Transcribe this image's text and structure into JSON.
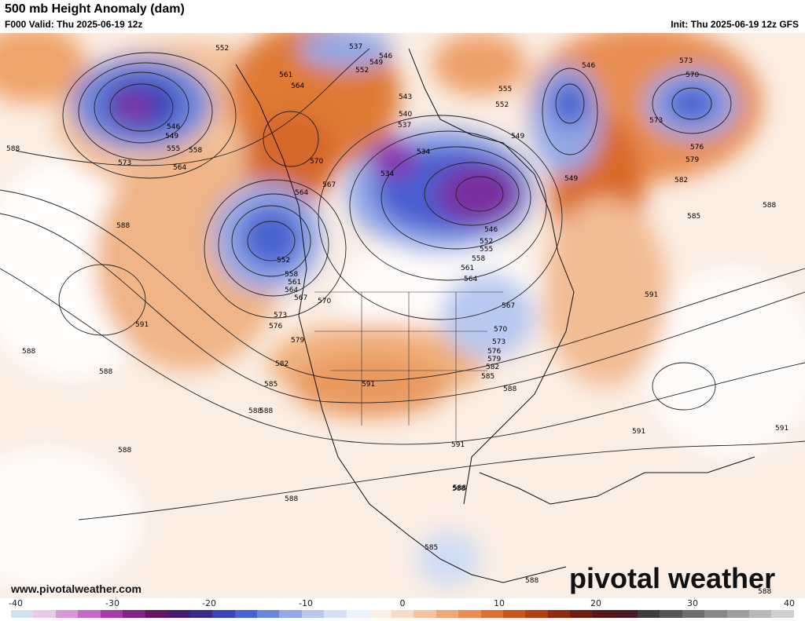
{
  "header": {
    "title": "500 mb Height Anomaly (dam)",
    "valid": "F000 Valid: Thu 2025-06-19 12z",
    "init": "Init: Thu 2025-06-19 12z GFS"
  },
  "footer": {
    "website": "www.pivotalweather.com",
    "logo": "pivotal weather"
  },
  "colorbar": {
    "ticks": [
      "-40",
      "-30",
      "-20",
      "-10",
      "0",
      "10",
      "20",
      "30",
      "40"
    ],
    "colors": [
      "#cfe4ee",
      "#e7c9ea",
      "#d79ad8",
      "#c46cc8",
      "#a63aa8",
      "#812484",
      "#63175f",
      "#4a1a6e",
      "#3a2a8a",
      "#3a44b8",
      "#4a63d0",
      "#6c86dc",
      "#93a8e6",
      "#b8c8ef",
      "#d6e0f6",
      "#eef2fb",
      "#fbf0e8",
      "#f8dcc6",
      "#f4c4a0",
      "#efa978",
      "#e88e52",
      "#db7030",
      "#c8561a",
      "#b04012",
      "#8e2c10",
      "#6e1e12",
      "#551818",
      "#4a1a24",
      "#3c3c3c",
      "#555555",
      "#6e6e6e",
      "#888888",
      "#a0a0a0",
      "#b8b8b8",
      "#d0d0d0"
    ]
  },
  "contour_labels": [
    {
      "text": "552"
    },
    {
      "text": "537"
    },
    {
      "text": "546"
    },
    {
      "text": "549"
    },
    {
      "text": "552"
    },
    {
      "text": "561"
    },
    {
      "text": "564"
    },
    {
      "text": "546"
    },
    {
      "text": "549"
    },
    {
      "text": "555"
    },
    {
      "text": "558"
    },
    {
      "text": "573"
    },
    {
      "text": "564"
    },
    {
      "text": "570"
    },
    {
      "text": "567"
    },
    {
      "text": "564"
    },
    {
      "text": "588"
    },
    {
      "text": "552"
    },
    {
      "text": "558"
    },
    {
      "text": "561"
    },
    {
      "text": "564"
    },
    {
      "text": "567"
    },
    {
      "text": "570"
    },
    {
      "text": "573"
    },
    {
      "text": "576"
    },
    {
      "text": "579"
    },
    {
      "text": "582"
    },
    {
      "text": "585"
    },
    {
      "text": "588"
    },
    {
      "text": "591"
    },
    {
      "text": "588"
    },
    {
      "text": "588"
    },
    {
      "text": "588"
    },
    {
      "text": "588"
    },
    {
      "text": "543"
    },
    {
      "text": "540"
    },
    {
      "text": "537"
    },
    {
      "text": "534"
    },
    {
      "text": "534"
    },
    {
      "text": "546"
    },
    {
      "text": "552"
    },
    {
      "text": "555"
    },
    {
      "text": "558"
    },
    {
      "text": "561"
    },
    {
      "text": "564"
    },
    {
      "text": "567"
    },
    {
      "text": "570"
    },
    {
      "text": "573"
    },
    {
      "text": "576"
    },
    {
      "text": "579"
    },
    {
      "text": "582"
    },
    {
      "text": "585"
    },
    {
      "text": "588"
    },
    {
      "text": "591"
    },
    {
      "text": "591"
    },
    {
      "text": "588"
    },
    {
      "text": "585"
    },
    {
      "text": "588"
    },
    {
      "text": "555"
    },
    {
      "text": "552"
    },
    {
      "text": "549"
    },
    {
      "text": "549"
    },
    {
      "text": "546"
    },
    {
      "text": "573"
    },
    {
      "text": "570"
    },
    {
      "text": "573"
    },
    {
      "text": "576"
    },
    {
      "text": "579"
    },
    {
      "text": "582"
    },
    {
      "text": "585"
    },
    {
      "text": "588"
    },
    {
      "text": "591"
    },
    {
      "text": "591"
    },
    {
      "text": "591"
    },
    {
      "text": "588"
    },
    {
      "text": "588"
    },
    {
      "text": "588"
    },
    {
      "text": "588"
    }
  ]
}
